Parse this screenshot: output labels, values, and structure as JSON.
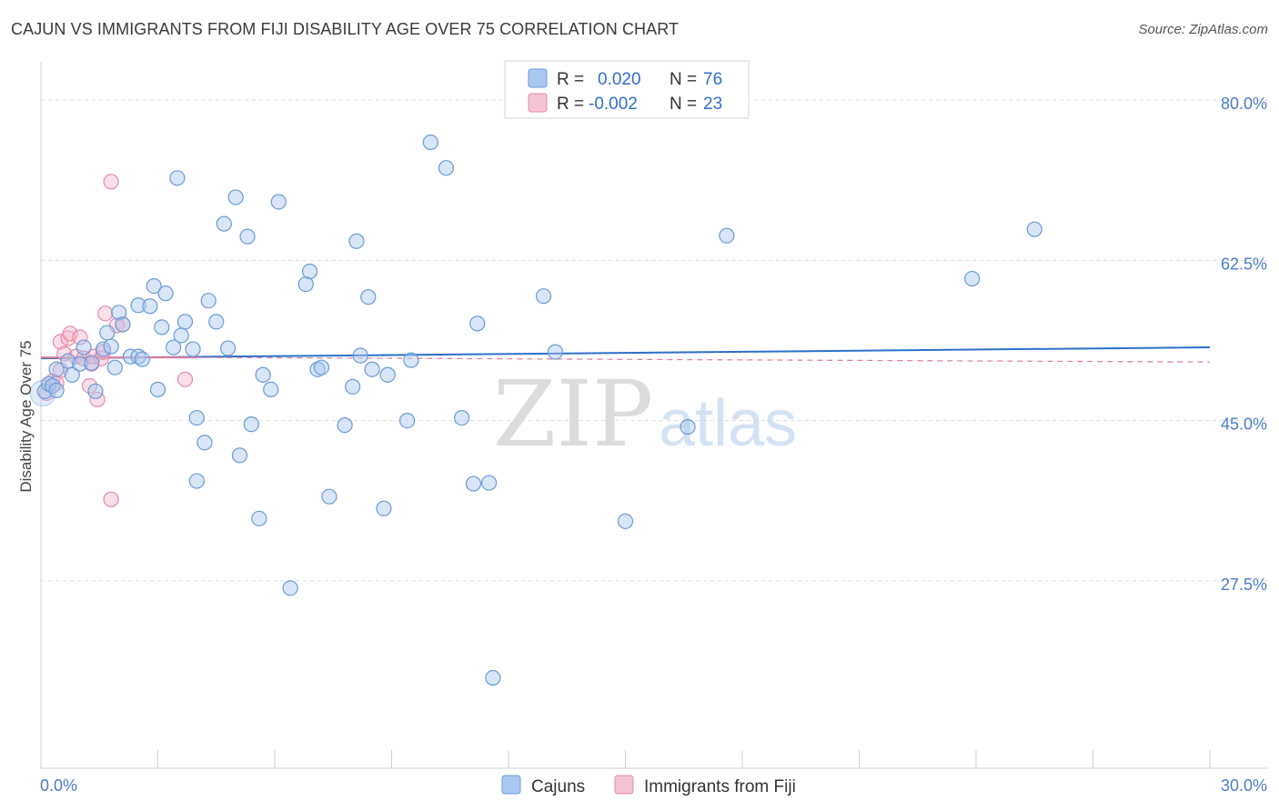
{
  "header": {
    "title": "CAJUN VS IMMIGRANTS FROM FIJI DISABILITY AGE OVER 75 CORRELATION CHART",
    "source": "Source: ZipAtlas.com"
  },
  "watermark": {
    "zip": "ZIP",
    "atlas": "atlas"
  },
  "colors": {
    "cajun": "#a9c8f0",
    "cajun_stroke": "#6a9ad8",
    "cajun_line": "#2c6fcc",
    "fiji": "#f5b8c9",
    "fiji_stroke": "#e58aa7",
    "fiji_line": "#e07a9a",
    "axis_text": "#4a7cc9",
    "grid": "#dddddd"
  },
  "chart_data": {
    "type": "scatter",
    "title": "CAJUN VS IMMIGRANTS FROM FIJI DISABILITY AGE OVER 75 CORRELATION CHART",
    "xlabel": "",
    "ylabel": "Disability Age Over 75",
    "xlim": [
      0,
      30
    ],
    "ylim": [
      10,
      83
    ],
    "x_tick_labels": [
      "0.0%",
      "30.0%"
    ],
    "y_ticks": [
      27.5,
      45.0,
      62.5,
      80.0
    ],
    "y_tick_labels": [
      "27.5%",
      "45.0%",
      "62.5%",
      "80.0%"
    ],
    "legend": {
      "entries": [
        {
          "r_label": "R =",
          "r_value": "0.020",
          "n_label": "N =",
          "n_value": "76"
        },
        {
          "r_label": "R =",
          "r_value": "-0.002",
          "n_label": "N =",
          "n_value": "23"
        }
      ]
    },
    "series": [
      {
        "name": "Cajuns",
        "trend": {
          "x0": 0,
          "y0": 51.8,
          "x1": 30,
          "y1": 53.0
        },
        "points": [
          [
            0.1,
            48.2
          ],
          [
            0.2,
            49.0
          ],
          [
            0.3,
            48.8
          ],
          [
            0.4,
            48.3
          ],
          [
            0.4,
            50.6
          ],
          [
            0.7,
            51.5
          ],
          [
            0.8,
            50.0
          ],
          [
            1.0,
            51.2
          ],
          [
            1.1,
            53.0
          ],
          [
            1.3,
            51.3
          ],
          [
            1.4,
            48.2
          ],
          [
            1.6,
            52.8
          ],
          [
            1.7,
            54.6
          ],
          [
            1.8,
            53.1
          ],
          [
            1.9,
            50.8
          ],
          [
            2.0,
            56.8
          ],
          [
            2.1,
            55.5
          ],
          [
            2.3,
            52.0
          ],
          [
            2.5,
            52.0
          ],
          [
            2.5,
            57.6
          ],
          [
            2.6,
            51.7
          ],
          [
            2.8,
            57.5
          ],
          [
            2.9,
            59.7
          ],
          [
            3.0,
            48.4
          ],
          [
            3.1,
            55.2
          ],
          [
            3.2,
            58.9
          ],
          [
            3.4,
            53.0
          ],
          [
            3.5,
            71.5
          ],
          [
            3.6,
            54.3
          ],
          [
            3.7,
            55.8
          ],
          [
            3.9,
            52.8
          ],
          [
            4.0,
            45.3
          ],
          [
            4.0,
            38.4
          ],
          [
            4.2,
            42.6
          ],
          [
            4.3,
            58.1
          ],
          [
            4.5,
            55.8
          ],
          [
            4.7,
            66.5
          ],
          [
            4.8,
            52.9
          ],
          [
            5.0,
            69.4
          ],
          [
            5.1,
            41.2
          ],
          [
            5.3,
            65.1
          ],
          [
            5.4,
            44.6
          ],
          [
            5.6,
            34.3
          ],
          [
            5.7,
            50.0
          ],
          [
            5.9,
            48.4
          ],
          [
            6.1,
            68.9
          ],
          [
            6.4,
            26.7
          ],
          [
            6.8,
            59.9
          ],
          [
            6.9,
            61.3
          ],
          [
            7.1,
            50.6
          ],
          [
            7.2,
            50.8
          ],
          [
            7.4,
            36.7
          ],
          [
            7.8,
            44.5
          ],
          [
            8.0,
            48.7
          ],
          [
            8.1,
            64.6
          ],
          [
            8.2,
            52.1
          ],
          [
            8.4,
            58.5
          ],
          [
            8.5,
            50.6
          ],
          [
            8.8,
            35.4
          ],
          [
            8.9,
            50.0
          ],
          [
            9.4,
            45.0
          ],
          [
            9.5,
            51.6
          ],
          [
            10.0,
            75.4
          ],
          [
            10.4,
            72.6
          ],
          [
            10.8,
            45.3
          ],
          [
            11.2,
            55.6
          ],
          [
            11.1,
            38.1
          ],
          [
            11.5,
            38.2
          ],
          [
            11.6,
            16.9
          ],
          [
            12.9,
            58.6
          ],
          [
            13.2,
            52.5
          ],
          [
            15.0,
            34.0
          ],
          [
            16.6,
            44.3
          ],
          [
            17.6,
            65.2
          ],
          [
            23.9,
            60.5
          ],
          [
            25.5,
            65.9
          ]
        ]
      },
      {
        "name": "Immigrants from Fiji",
        "trend": {
          "x0": 0,
          "y0": 51.9,
          "x1": 4.0,
          "y1": 51.9,
          "dashed_to": 30,
          "dashed_y1": 51.4
        },
        "points": [
          [
            0.15,
            48.0
          ],
          [
            0.3,
            49.3
          ],
          [
            0.4,
            49.1
          ],
          [
            0.5,
            50.5
          ],
          [
            0.5,
            53.6
          ],
          [
            0.6,
            52.3
          ],
          [
            0.7,
            54.0
          ],
          [
            0.75,
            54.5
          ],
          [
            0.9,
            52.0
          ],
          [
            1.0,
            54.1
          ],
          [
            1.1,
            51.8
          ],
          [
            1.25,
            48.8
          ],
          [
            1.3,
            51.2
          ],
          [
            1.35,
            52.0
          ],
          [
            1.45,
            47.3
          ],
          [
            1.55,
            51.8
          ],
          [
            1.6,
            52.5
          ],
          [
            1.65,
            56.7
          ],
          [
            1.8,
            71.1
          ],
          [
            1.8,
            36.4
          ],
          [
            1.95,
            55.4
          ],
          [
            2.1,
            55.5
          ],
          [
            3.7,
            49.5
          ]
        ]
      }
    ]
  },
  "bottom_legend": [
    "Cajuns",
    "Immigrants from Fiji"
  ]
}
